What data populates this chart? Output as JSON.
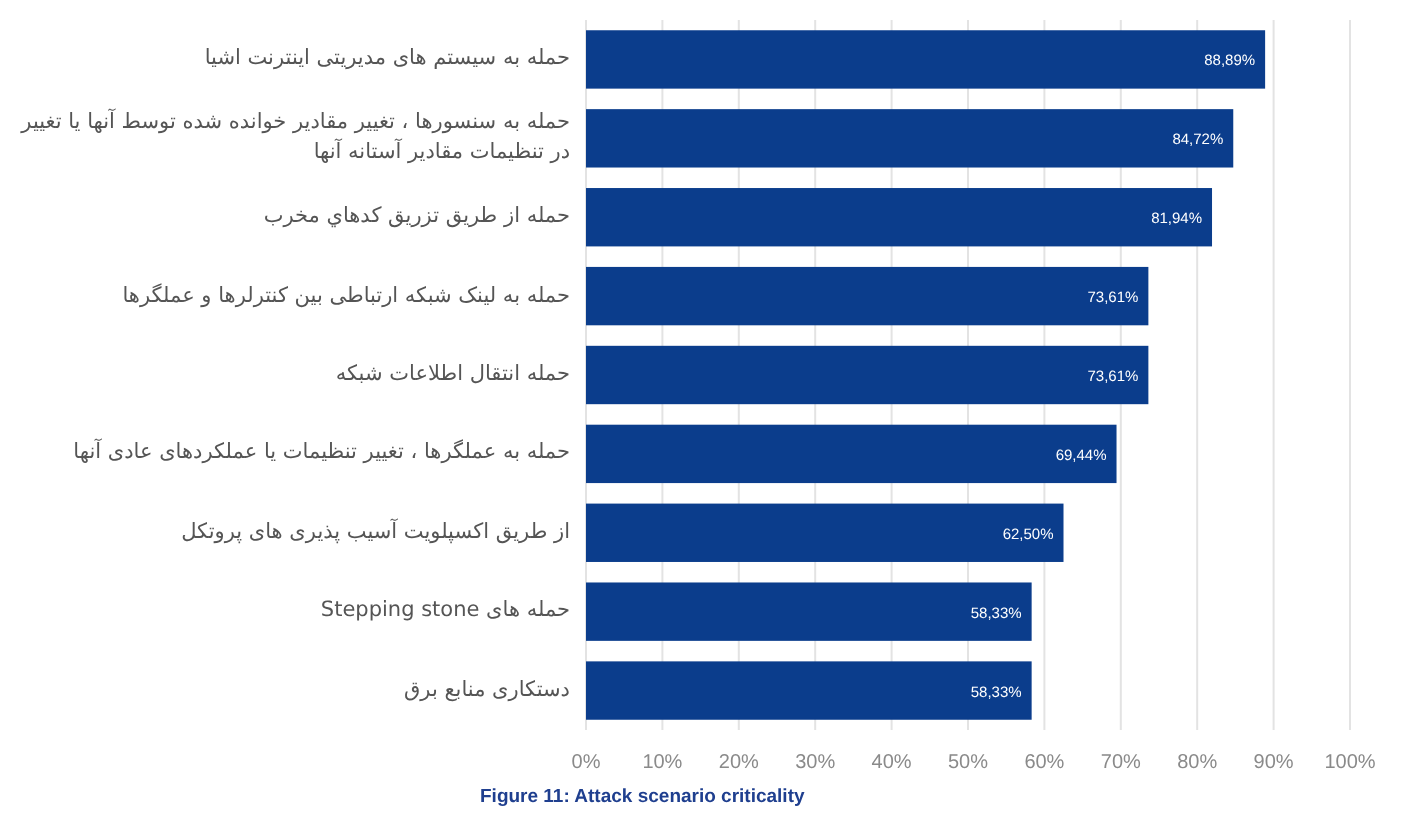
{
  "chart_data": {
    "type": "bar",
    "orientation": "horizontal",
    "categories": [
      "حمله به سیستم های مدیریتی اینترنت اشیا",
      "حمله به سنسورها ، تغییر مقادیر خوانده شده توسط آنها یا تغییر در تنظیمات مقادیر آستانه آنها",
      "حمله از طریق تزریق کدهاي مخرب",
      "حمله به لینک شبکه ارتباطی بین کنترلرها و عملگرها",
      "حمله انتقال اطلاعات شبکه",
      "حمله به عملگرها ، تغییر تنظیمات یا عملکردهای عادی آنها",
      "از طریق اکسپلویت آسیب پذیری های پروتکل",
      "حمله های Stepping stone",
      "دستکاری منابع برق"
    ],
    "values": [
      88.89,
      84.72,
      81.94,
      73.61,
      73.61,
      69.44,
      62.5,
      58.33,
      58.33
    ],
    "value_labels": [
      "88,89%",
      "84,72%",
      "81,94%",
      "73,61%",
      "73,61%",
      "69,44%",
      "62,50%",
      "58,33%",
      "58,33%"
    ],
    "color": "#0b3d8c",
    "xlim": [
      0,
      100
    ],
    "xticks": [
      {
        "value": 0,
        "label": "0%"
      },
      {
        "value": 10,
        "label": "10%"
      },
      {
        "value": 20,
        "label": "20%"
      },
      {
        "value": 30,
        "label": "30%"
      },
      {
        "value": 40,
        "label": "40%"
      },
      {
        "value": 50,
        "label": "50%"
      },
      {
        "value": 60,
        "label": "60%"
      },
      {
        "value": 70,
        "label": "70%"
      },
      {
        "value": 80,
        "label": "80%"
      },
      {
        "value": 90,
        "label": "90%"
      },
      {
        "value": 100,
        "label": "100%"
      }
    ],
    "grid": "x",
    "annotations": [
      "Figure 11: Attack scenario criticality"
    ]
  }
}
